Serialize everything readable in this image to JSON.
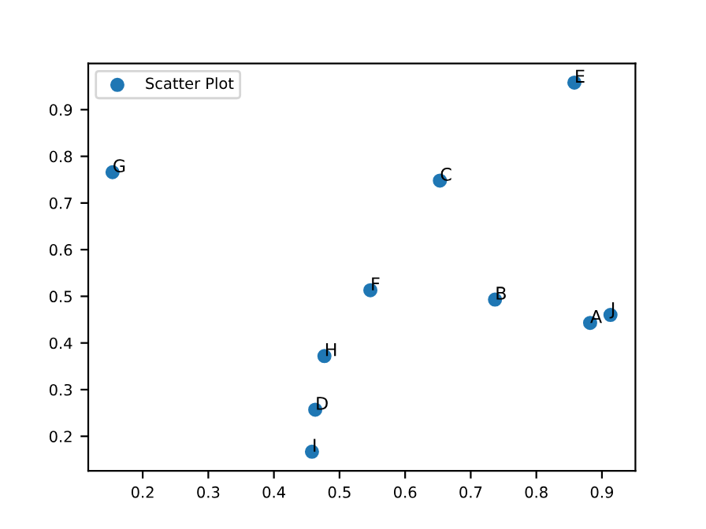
{
  "chart_data": {
    "type": "scatter",
    "xlim": [
      0.117,
      0.951
    ],
    "ylim": [
      0.126,
      0.999
    ],
    "xticks": [
      0.2,
      0.3,
      0.4,
      0.5,
      0.6,
      0.7,
      0.8,
      0.9
    ],
    "yticks": [
      0.2,
      0.3,
      0.4,
      0.5,
      0.6,
      0.7,
      0.8,
      0.9
    ],
    "legend": "top left",
    "marker": "circle",
    "grid": false,
    "series": [
      {
        "name": "Scatter Plot",
        "color": "#1f77b4",
        "x": [
          0.882,
          0.737,
          0.653,
          0.463,
          0.858,
          0.547,
          0.154,
          0.477,
          0.458,
          0.913
        ],
        "values": [
          0.443,
          0.493,
          0.748,
          0.257,
          0.958,
          0.513,
          0.766,
          0.372,
          0.167,
          0.46
        ]
      }
    ],
    "annotations": [
      {
        "text": "A",
        "x": 0.882,
        "y": 0.443
      },
      {
        "text": "B",
        "x": 0.737,
        "y": 0.493
      },
      {
        "text": "C",
        "x": 0.653,
        "y": 0.748
      },
      {
        "text": "D",
        "x": 0.463,
        "y": 0.257
      },
      {
        "text": "E",
        "x": 0.858,
        "y": 0.958
      },
      {
        "text": "F",
        "x": 0.547,
        "y": 0.513
      },
      {
        "text": "G",
        "x": 0.154,
        "y": 0.766
      },
      {
        "text": "H",
        "x": 0.477,
        "y": 0.372
      },
      {
        "text": "I",
        "x": 0.458,
        "y": 0.167
      },
      {
        "text": "J",
        "x": 0.913,
        "y": 0.46
      }
    ]
  }
}
